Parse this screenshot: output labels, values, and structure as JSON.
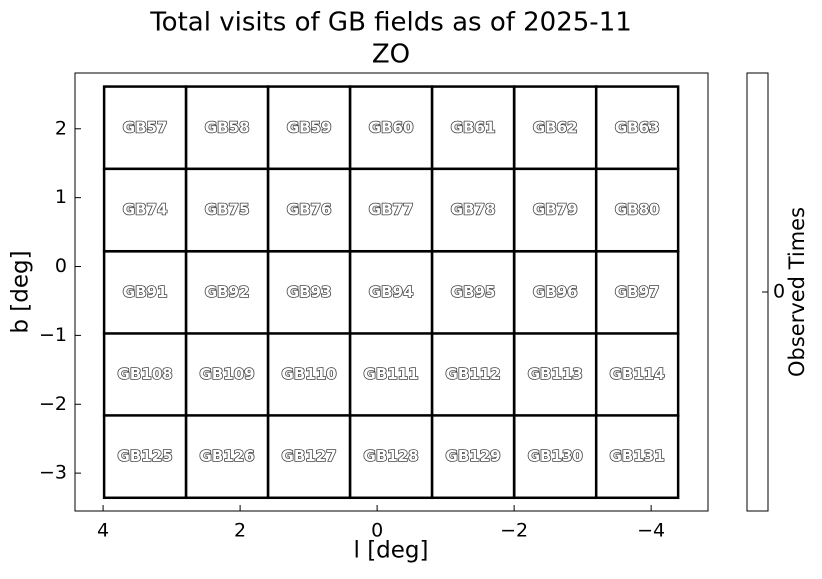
{
  "chart_data": {
    "type": "field-map",
    "title": "Total visits of GB fields as of 2025-11",
    "subtitle": "ZO",
    "xlabel": "l [deg]",
    "ylabel": "b [deg]",
    "xlim": [
      4.41,
      -4.83
    ],
    "ylim": [
      -3.55,
      2.81
    ],
    "xticks": [
      4,
      2,
      0,
      {
        "value": -2,
        "label": "−2"
      },
      {
        "value": -4,
        "label": "−4"
      }
    ],
    "yticks": [
      2,
      1,
      0,
      {
        "value": -1,
        "label": "−1"
      },
      {
        "value": -2,
        "label": "−2"
      },
      {
        "value": -3,
        "label": "−3"
      }
    ],
    "field_size": 1.196,
    "fields": [
      {
        "name": "GB57",
        "l": 3.387,
        "b": 2.015
      },
      {
        "name": "GB58",
        "l": 2.19,
        "b": 2.015
      },
      {
        "name": "GB59",
        "l": 0.993,
        "b": 2.015
      },
      {
        "name": "GB60",
        "l": -0.204,
        "b": 2.015
      },
      {
        "name": "GB61",
        "l": -1.401,
        "b": 2.015
      },
      {
        "name": "GB62",
        "l": -2.6,
        "b": 2.015
      },
      {
        "name": "GB63",
        "l": -3.796,
        "b": 2.015
      },
      {
        "name": "GB74",
        "l": 3.387,
        "b": 0.82
      },
      {
        "name": "GB75",
        "l": 2.19,
        "b": 0.82
      },
      {
        "name": "GB76",
        "l": 0.993,
        "b": 0.82
      },
      {
        "name": "GB77",
        "l": -0.204,
        "b": 0.82
      },
      {
        "name": "GB78",
        "l": -1.401,
        "b": 0.82
      },
      {
        "name": "GB79",
        "l": -2.6,
        "b": 0.82
      },
      {
        "name": "GB80",
        "l": -3.796,
        "b": 0.82
      },
      {
        "name": "GB91",
        "l": 3.387,
        "b": -0.378
      },
      {
        "name": "GB92",
        "l": 2.19,
        "b": -0.378
      },
      {
        "name": "GB93",
        "l": 0.993,
        "b": -0.378
      },
      {
        "name": "GB94",
        "l": -0.204,
        "b": -0.378
      },
      {
        "name": "GB95",
        "l": -1.401,
        "b": -0.378
      },
      {
        "name": "GB96",
        "l": -2.6,
        "b": -0.378
      },
      {
        "name": "GB97",
        "l": -3.796,
        "b": -0.378
      },
      {
        "name": "GB108",
        "l": 3.387,
        "b": -1.57
      },
      {
        "name": "GB109",
        "l": 2.19,
        "b": -1.57
      },
      {
        "name": "GB110",
        "l": 0.993,
        "b": -1.57
      },
      {
        "name": "GB111",
        "l": -0.204,
        "b": -1.57
      },
      {
        "name": "GB112",
        "l": -1.401,
        "b": -1.57
      },
      {
        "name": "GB113",
        "l": -2.6,
        "b": -1.57
      },
      {
        "name": "GB114",
        "l": -3.796,
        "b": -1.57
      },
      {
        "name": "GB125",
        "l": 3.387,
        "b": -2.76
      },
      {
        "name": "GB126",
        "l": 2.19,
        "b": -2.76
      },
      {
        "name": "GB127",
        "l": 0.993,
        "b": -2.76
      },
      {
        "name": "GB128",
        "l": -0.204,
        "b": -2.76
      },
      {
        "name": "GB129",
        "l": -1.401,
        "b": -2.76
      },
      {
        "name": "GB130",
        "l": -2.6,
        "b": -2.76
      },
      {
        "name": "GB131",
        "l": -3.796,
        "b": -2.76
      }
    ],
    "colorbar": {
      "label": "Observed Times",
      "ticks": [
        0
      ],
      "color": "#ffffff"
    }
  }
}
